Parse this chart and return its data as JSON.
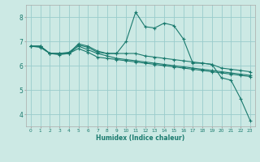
{
  "title": "",
  "xlabel": "Humidex (Indice chaleur)",
  "ylabel": "",
  "bg_color": "#cce9e4",
  "line_color": "#1a7a6e",
  "grid_color": "#99cccc",
  "xlim": [
    -0.5,
    23.5
  ],
  "ylim": [
    3.5,
    8.5
  ],
  "yticks": [
    4,
    5,
    6,
    7,
    8
  ],
  "xticks": [
    0,
    1,
    2,
    3,
    4,
    5,
    6,
    7,
    8,
    9,
    10,
    11,
    12,
    13,
    14,
    15,
    16,
    17,
    18,
    19,
    20,
    21,
    22,
    23
  ],
  "series": [
    {
      "x": [
        0,
        1,
        2,
        3,
        4,
        5,
        6,
        7,
        8,
        9,
        10,
        11,
        12,
        13,
        14,
        15,
        16,
        17,
        18,
        19,
        20,
        21,
        22,
        23
      ],
      "y": [
        6.8,
        6.8,
        6.5,
        6.5,
        6.5,
        6.9,
        6.8,
        6.6,
        6.5,
        6.5,
        7.0,
        8.2,
        7.6,
        7.55,
        7.75,
        7.65,
        7.1,
        6.1,
        6.1,
        6.05,
        5.5,
        5.4,
        4.65,
        3.75
      ]
    },
    {
      "x": [
        0,
        1,
        2,
        3,
        4,
        5,
        6,
        7,
        8,
        9,
        10,
        11,
        12,
        13,
        14,
        15,
        16,
        17,
        18,
        19,
        20,
        21,
        22,
        23
      ],
      "y": [
        6.8,
        6.8,
        6.5,
        6.5,
        6.55,
        6.85,
        6.75,
        6.55,
        6.5,
        6.5,
        6.5,
        6.5,
        6.4,
        6.35,
        6.3,
        6.25,
        6.2,
        6.15,
        6.1,
        6.05,
        5.9,
        5.85,
        5.8,
        5.75
      ]
    },
    {
      "x": [
        0,
        1,
        2,
        3,
        4,
        5,
        6,
        7,
        8,
        9,
        10,
        11,
        12,
        13,
        14,
        15,
        16,
        17,
        18,
        19,
        20,
        21,
        22,
        23
      ],
      "y": [
        6.8,
        6.8,
        6.5,
        6.5,
        6.5,
        6.8,
        6.65,
        6.5,
        6.4,
        6.3,
        6.25,
        6.2,
        6.15,
        6.1,
        6.05,
        6.0,
        5.95,
        5.9,
        5.85,
        5.8,
        5.75,
        5.7,
        5.65,
        5.6
      ]
    },
    {
      "x": [
        0,
        1,
        2,
        3,
        4,
        5,
        6,
        7,
        8,
        9,
        10,
        11,
        12,
        13,
        14,
        15,
        16,
        17,
        18,
        19,
        20,
        21,
        22,
        23
      ],
      "y": [
        6.8,
        6.75,
        6.5,
        6.45,
        6.5,
        6.7,
        6.55,
        6.35,
        6.3,
        6.25,
        6.2,
        6.15,
        6.1,
        6.05,
        6.0,
        5.95,
        5.9,
        5.85,
        5.8,
        5.75,
        5.7,
        5.65,
        5.6,
        5.55
      ]
    }
  ]
}
